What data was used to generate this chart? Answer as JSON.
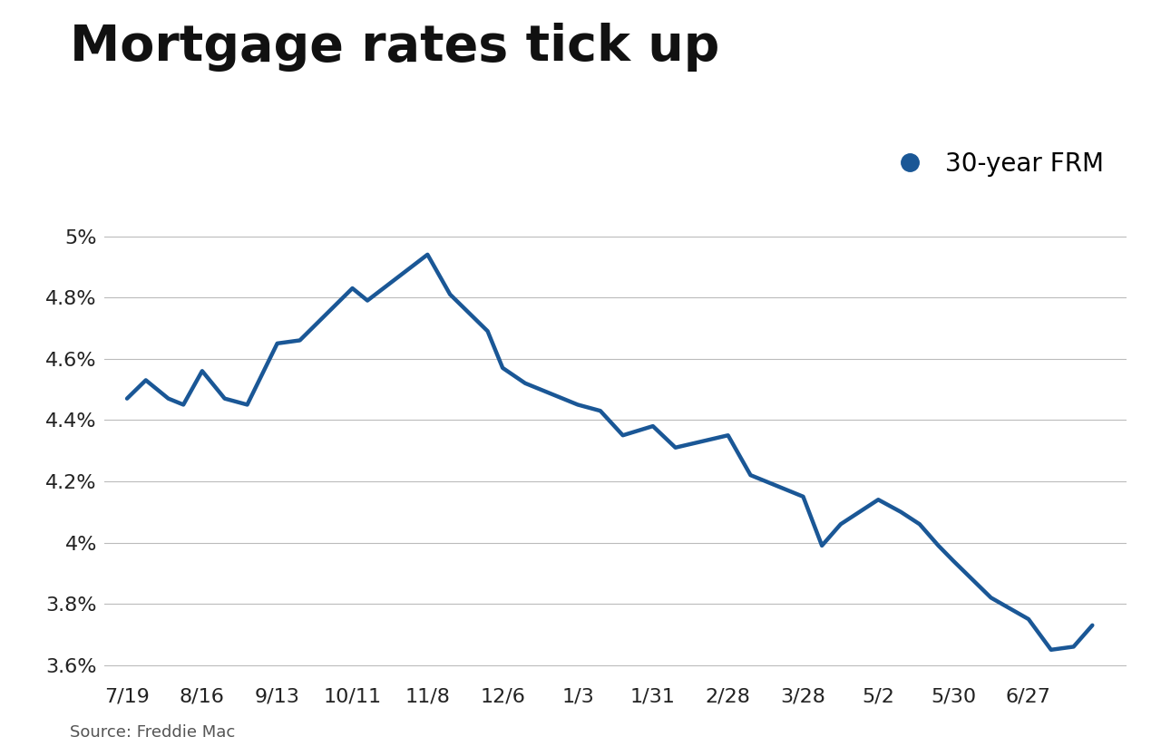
{
  "title": "Mortgage rates tick up",
  "legend_label": "30-year FRM",
  "source_text": "Source: Freddie Mac",
  "line_color": "#1a5796",
  "background_color": "#ffffff",
  "title_fontsize": 40,
  "axis_label_fontsize": 16,
  "legend_fontsize": 20,
  "source_fontsize": 13,
  "ylim": [
    3.55,
    5.08
  ],
  "yticks": [
    3.6,
    3.8,
    4.0,
    4.2,
    4.4,
    4.6,
    4.8,
    5.0
  ],
  "ytick_labels": [
    "3.6%",
    "3.8%",
    "4%",
    "4.2%",
    "4.4%",
    "4.6%",
    "4.8%",
    "5%"
  ],
  "x_labels": [
    "7/19",
    "8/16",
    "9/13",
    "10/11",
    "11/8",
    "12/6",
    "1/3",
    "1/31",
    "2/28",
    "3/28",
    "5/2",
    "5/30",
    "6/27"
  ],
  "line_width": 3.2,
  "series_x": [
    0.0,
    0.25,
    0.55,
    0.75,
    1.0,
    1.3,
    1.6,
    2.0,
    2.3,
    3.0,
    3.2,
    4.0,
    4.3,
    4.55,
    4.8,
    5.0,
    5.3,
    6.0,
    6.3,
    6.6,
    7.0,
    7.3,
    8.0,
    8.3,
    9.0,
    9.25,
    9.5,
    10.0,
    10.3,
    10.55,
    10.8,
    11.0,
    11.5,
    12.0,
    12.3,
    12.6,
    12.85
  ],
  "series_y": [
    4.47,
    4.53,
    4.47,
    4.45,
    4.56,
    4.47,
    4.45,
    4.65,
    4.66,
    4.83,
    4.79,
    4.94,
    4.81,
    4.75,
    4.69,
    4.57,
    4.52,
    4.45,
    4.43,
    4.35,
    4.38,
    4.31,
    4.35,
    4.22,
    4.15,
    3.99,
    4.06,
    4.14,
    4.1,
    4.06,
    3.99,
    3.94,
    3.82,
    3.75,
    3.65,
    3.66,
    3.73
  ]
}
